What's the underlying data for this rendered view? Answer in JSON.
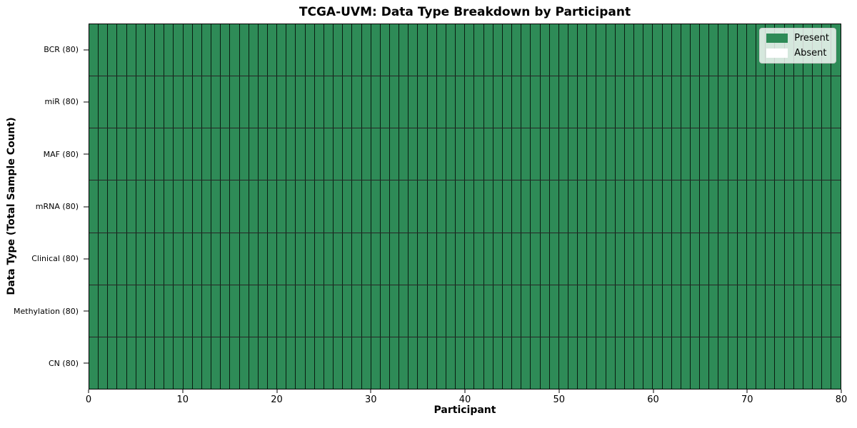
{
  "chart_data": {
    "type": "heatmap",
    "title": "TCGA-UVM: Data Type Breakdown by Participant",
    "xlabel": "Participant",
    "ylabel": "Data Type (Total Sample Count)",
    "xlim": [
      0,
      80
    ],
    "x_ticks": [
      0,
      10,
      20,
      30,
      40,
      50,
      60,
      70,
      80
    ],
    "n_participants": 80,
    "rows_top_to_bottom": [
      {
        "label": "BCR (80)",
        "present": 80,
        "absent": 0
      },
      {
        "label": "miR (80)",
        "present": 80,
        "absent": 0
      },
      {
        "label": "MAF (80)",
        "present": 80,
        "absent": 0
      },
      {
        "label": "mRNA (80)",
        "present": 80,
        "absent": 0
      },
      {
        "label": "Clinical (80)",
        "present": 80,
        "absent": 0
      },
      {
        "label": "Methylation (80)",
        "present": 80,
        "absent": 0
      },
      {
        "label": "CN (80)",
        "present": 80,
        "absent": 0
      }
    ],
    "legend": {
      "position": "upper right",
      "entries": [
        {
          "label": "Present",
          "color": "#2e8b57"
        },
        {
          "label": "Absent",
          "color": "#ffffff"
        }
      ]
    },
    "colors": {
      "present": "#2e8b57",
      "absent": "#ffffff",
      "cell_edge": "#000000",
      "axis": "#000000",
      "background": "#ffffff"
    }
  }
}
